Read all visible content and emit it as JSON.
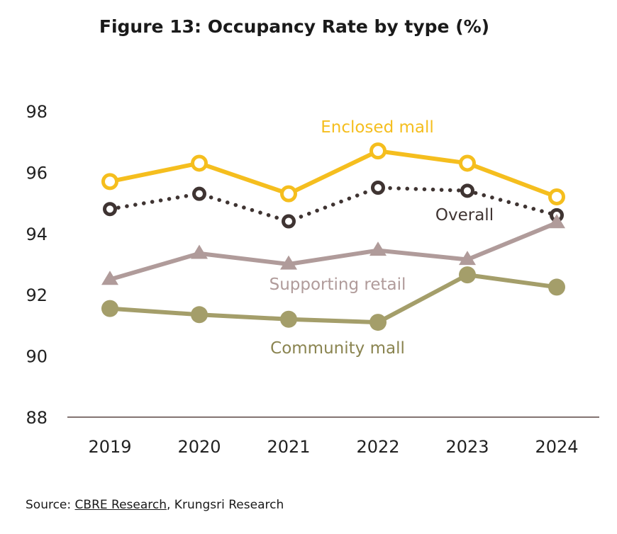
{
  "chart_data": {
    "type": "line",
    "title": "Figure 13: Occupancy Rate by type (%)",
    "categories": [
      "2019",
      "2020",
      "2021",
      "2022",
      "2023",
      "2024"
    ],
    "ylim": [
      88,
      98
    ],
    "yticks": [
      "88",
      "90",
      "92",
      "94",
      "96",
      "98"
    ],
    "grid": false,
    "series": [
      {
        "name": "Enclosed mall",
        "values": [
          95.7,
          96.3,
          95.3,
          96.7,
          96.3,
          95.2
        ],
        "color": "#F5BE1E",
        "marker": "circle-open",
        "line": "solid",
        "label_color": "#F5BE1E"
      },
      {
        "name": "Overall",
        "values": [
          94.8,
          95.3,
          94.4,
          95.5,
          95.4,
          94.6
        ],
        "color": "#3F3432",
        "marker": "circle-open",
        "line": "dotted",
        "label_color": "#3F3432"
      },
      {
        "name": "Supporting retail",
        "values": [
          92.5,
          93.35,
          93.0,
          93.45,
          93.15,
          94.35
        ],
        "color": "#B09B9A",
        "marker": "triangle",
        "line": "solid",
        "label_color": "#B09B9A"
      },
      {
        "name": "Community mall",
        "values": [
          91.55,
          91.35,
          91.2,
          91.1,
          92.65,
          92.25
        ],
        "color": "#A49E6A",
        "marker": "circle-filled",
        "line": "solid",
        "label_color": "#8A8450"
      }
    ]
  },
  "source": {
    "prefix": "Source: ",
    "link": "CBRE Research",
    "suffix": ", Krungsri Research"
  }
}
